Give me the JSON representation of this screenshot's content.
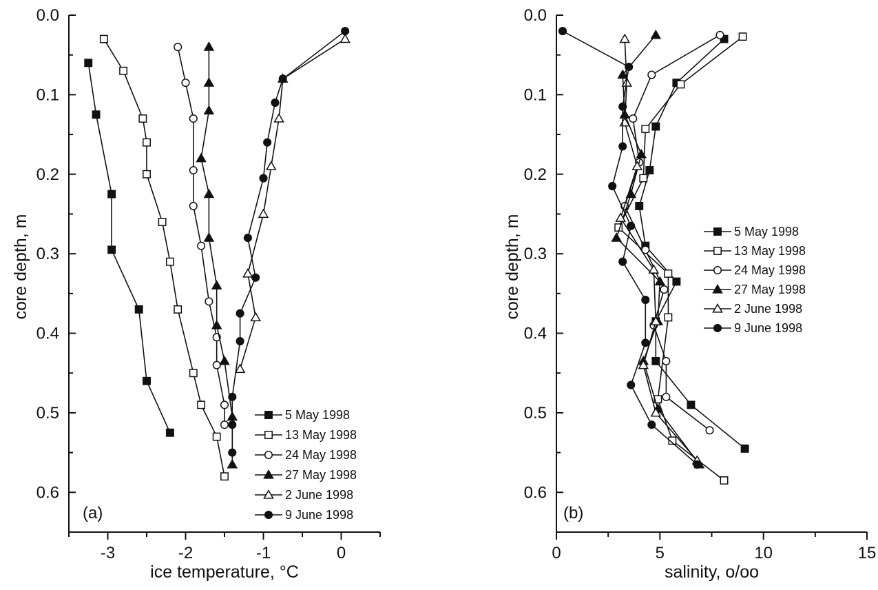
{
  "chart_data": [
    {
      "type": "line",
      "panel_label": "(a)",
      "xlabel": "ice temperature, °C",
      "ylabel": "core depth, m",
      "xlim": [
        -3.5,
        0.5
      ],
      "ylim": [
        0.0,
        0.65
      ],
      "y_inverted": true,
      "xticks": [
        "-3",
        "-2",
        "-1",
        "0"
      ],
      "yticks": [
        "0.0",
        "0.1",
        "0.2",
        "0.3",
        "0.4",
        "0.5",
        "0.6"
      ],
      "legend_position": "bottom-right",
      "grid": false,
      "series": [
        {
          "name": "5 May 1998",
          "marker": "filled-square",
          "points": [
            {
              "x": -3.25,
              "y": 0.06
            },
            {
              "x": -3.15,
              "y": 0.125
            },
            {
              "x": -2.95,
              "y": 0.225
            },
            {
              "x": -2.95,
              "y": 0.295
            },
            {
              "x": -2.6,
              "y": 0.37
            },
            {
              "x": -2.5,
              "y": 0.46
            },
            {
              "x": -2.2,
              "y": 0.525
            }
          ]
        },
        {
          "name": "13 May 1998",
          "marker": "open-square",
          "points": [
            {
              "x": -3.05,
              "y": 0.03
            },
            {
              "x": -2.8,
              "y": 0.07
            },
            {
              "x": -2.55,
              "y": 0.13
            },
            {
              "x": -2.5,
              "y": 0.16
            },
            {
              "x": -2.5,
              "y": 0.2
            },
            {
              "x": -2.3,
              "y": 0.26
            },
            {
              "x": -2.2,
              "y": 0.31
            },
            {
              "x": -2.1,
              "y": 0.37
            },
            {
              "x": -1.9,
              "y": 0.45
            },
            {
              "x": -1.8,
              "y": 0.49
            },
            {
              "x": -1.6,
              "y": 0.53
            },
            {
              "x": -1.5,
              "y": 0.58
            }
          ]
        },
        {
          "name": "24 May 1998",
          "marker": "open-circle",
          "points": [
            {
              "x": -2.1,
              "y": 0.04
            },
            {
              "x": -2.0,
              "y": 0.085
            },
            {
              "x": -1.9,
              "y": 0.13
            },
            {
              "x": -1.9,
              "y": 0.195
            },
            {
              "x": -1.9,
              "y": 0.24
            },
            {
              "x": -1.8,
              "y": 0.29
            },
            {
              "x": -1.7,
              "y": 0.36
            },
            {
              "x": -1.6,
              "y": 0.405
            },
            {
              "x": -1.6,
              "y": 0.44
            },
            {
              "x": -1.5,
              "y": 0.49
            },
            {
              "x": -1.5,
              "y": 0.515
            }
          ]
        },
        {
          "name": "27 May 1998",
          "marker": "filled-triangle",
          "points": [
            {
              "x": -1.7,
              "y": 0.04
            },
            {
              "x": -1.7,
              "y": 0.085
            },
            {
              "x": -1.7,
              "y": 0.12
            },
            {
              "x": -1.8,
              "y": 0.18
            },
            {
              "x": -1.7,
              "y": 0.225
            },
            {
              "x": -1.7,
              "y": 0.28
            },
            {
              "x": -1.6,
              "y": 0.34
            },
            {
              "x": -1.6,
              "y": 0.39
            },
            {
              "x": -1.5,
              "y": 0.435
            },
            {
              "x": -1.4,
              "y": 0.505
            },
            {
              "x": -1.4,
              "y": 0.565
            }
          ]
        },
        {
          "name": "2 June 1998",
          "marker": "open-triangle",
          "points": [
            {
              "x": 0.05,
              "y": 0.03
            },
            {
              "x": -0.75,
              "y": 0.08
            },
            {
              "x": -0.8,
              "y": 0.13
            },
            {
              "x": -0.9,
              "y": 0.19
            },
            {
              "x": -1.0,
              "y": 0.25
            },
            {
              "x": -1.2,
              "y": 0.325
            },
            {
              "x": -1.1,
              "y": 0.38
            },
            {
              "x": -1.3,
              "y": 0.445
            }
          ]
        },
        {
          "name": "9 June 1998",
          "marker": "filled-circle",
          "points": [
            {
              "x": 0.05,
              "y": 0.02
            },
            {
              "x": -0.75,
              "y": 0.08
            },
            {
              "x": -0.85,
              "y": 0.11
            },
            {
              "x": -0.95,
              "y": 0.16
            },
            {
              "x": -1.0,
              "y": 0.205
            },
            {
              "x": -1.2,
              "y": 0.28
            },
            {
              "x": -1.1,
              "y": 0.33
            },
            {
              "x": -1.3,
              "y": 0.375
            },
            {
              "x": -1.3,
              "y": 0.41
            },
            {
              "x": -1.4,
              "y": 0.48
            },
            {
              "x": -1.4,
              "y": 0.515
            },
            {
              "x": -1.4,
              "y": 0.55
            }
          ]
        }
      ]
    },
    {
      "type": "line",
      "panel_label": "(b)",
      "xlabel": "salinity, o/oo",
      "ylabel": "core depth, m",
      "xlim": [
        0,
        15
      ],
      "ylim": [
        0.0,
        0.65
      ],
      "y_inverted": true,
      "xticks": [
        "0",
        "5",
        "10",
        "15"
      ],
      "yticks": [
        "0.0",
        "0.1",
        "0.2",
        "0.3",
        "0.4",
        "0.5",
        "0.6"
      ],
      "legend_position": "right",
      "grid": false,
      "series": [
        {
          "name": "5 May 1998",
          "marker": "filled-square",
          "points": [
            {
              "x": 8.1,
              "y": 0.03
            },
            {
              "x": 5.8,
              "y": 0.085
            },
            {
              "x": 4.8,
              "y": 0.14
            },
            {
              "x": 4.5,
              "y": 0.195
            },
            {
              "x": 4.0,
              "y": 0.24
            },
            {
              "x": 4.3,
              "y": 0.29
            },
            {
              "x": 5.8,
              "y": 0.335
            },
            {
              "x": 4.8,
              "y": 0.385
            },
            {
              "x": 4.8,
              "y": 0.435
            },
            {
              "x": 6.5,
              "y": 0.49
            },
            {
              "x": 9.1,
              "y": 0.545
            }
          ]
        },
        {
          "name": "13 May 1998",
          "marker": "open-square",
          "points": [
            {
              "x": 9.0,
              "y": 0.027
            },
            {
              "x": 6.0,
              "y": 0.087
            },
            {
              "x": 4.3,
              "y": 0.143
            },
            {
              "x": 4.2,
              "y": 0.205
            },
            {
              "x": 3.0,
              "y": 0.267
            },
            {
              "x": 5.4,
              "y": 0.325
            },
            {
              "x": 5.4,
              "y": 0.38
            },
            {
              "x": 4.9,
              "y": 0.483
            },
            {
              "x": 5.6,
              "y": 0.535
            },
            {
              "x": 8.1,
              "y": 0.585
            }
          ]
        },
        {
          "name": "24 May 1998",
          "marker": "open-circle",
          "points": [
            {
              "x": 7.9,
              "y": 0.025
            },
            {
              "x": 4.6,
              "y": 0.075
            },
            {
              "x": 3.7,
              "y": 0.13
            },
            {
              "x": 4.0,
              "y": 0.185
            },
            {
              "x": 3.3,
              "y": 0.24
            },
            {
              "x": 4.3,
              "y": 0.295
            },
            {
              "x": 5.2,
              "y": 0.345
            },
            {
              "x": 4.7,
              "y": 0.39
            },
            {
              "x": 5.3,
              "y": 0.435
            },
            {
              "x": 5.3,
              "y": 0.48
            },
            {
              "x": 7.4,
              "y": 0.522
            }
          ]
        },
        {
          "name": "27 May 1998",
          "marker": "filled-triangle",
          "points": [
            {
              "x": 4.8,
              "y": 0.025
            },
            {
              "x": 3.2,
              "y": 0.075
            },
            {
              "x": 3.3,
              "y": 0.125
            },
            {
              "x": 4.1,
              "y": 0.175
            },
            {
              "x": 3.6,
              "y": 0.225
            },
            {
              "x": 2.9,
              "y": 0.28
            },
            {
              "x": 5.0,
              "y": 0.335
            },
            {
              "x": 4.9,
              "y": 0.385
            },
            {
              "x": 4.2,
              "y": 0.435
            },
            {
              "x": 4.9,
              "y": 0.495
            },
            {
              "x": 6.9,
              "y": 0.565
            }
          ]
        },
        {
          "name": "2 June 1998",
          "marker": "open-triangle",
          "points": [
            {
              "x": 3.3,
              "y": 0.03
            },
            {
              "x": 3.4,
              "y": 0.085
            },
            {
              "x": 3.3,
              "y": 0.135
            },
            {
              "x": 3.9,
              "y": 0.19
            },
            {
              "x": 3.1,
              "y": 0.255
            },
            {
              "x": 4.7,
              "y": 0.32
            },
            {
              "x": 4.8,
              "y": 0.385
            },
            {
              "x": 4.2,
              "y": 0.44
            },
            {
              "x": 4.8,
              "y": 0.5
            },
            {
              "x": 6.8,
              "y": 0.56
            }
          ]
        },
        {
          "name": "9 June 1998",
          "marker": "filled-circle",
          "points": [
            {
              "x": 0.3,
              "y": 0.02
            },
            {
              "x": 3.5,
              "y": 0.065
            },
            {
              "x": 3.2,
              "y": 0.115
            },
            {
              "x": 3.2,
              "y": 0.165
            },
            {
              "x": 2.7,
              "y": 0.215
            },
            {
              "x": 3.6,
              "y": 0.265
            },
            {
              "x": 3.2,
              "y": 0.31
            },
            {
              "x": 4.3,
              "y": 0.358
            },
            {
              "x": 4.3,
              "y": 0.412
            },
            {
              "x": 3.6,
              "y": 0.465
            },
            {
              "x": 4.6,
              "y": 0.515
            },
            {
              "x": 6.8,
              "y": 0.565
            }
          ]
        }
      ]
    }
  ]
}
